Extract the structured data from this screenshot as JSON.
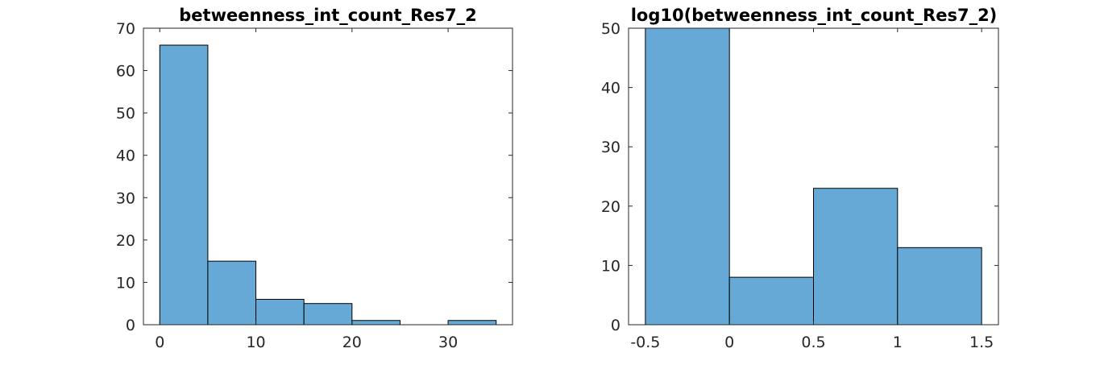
{
  "chart_data": [
    {
      "type": "bar",
      "title": "betweenness_int_count_Res7_2",
      "xlabel": "",
      "ylabel": "",
      "bin_edges": [
        0,
        5,
        10,
        15,
        20,
        25,
        30,
        35
      ],
      "values": [
        66,
        15,
        6,
        5,
        1,
        0,
        1
      ],
      "xlim": [
        -1.7,
        36.7
      ],
      "ylim": [
        0,
        70
      ],
      "xticks": [
        "0",
        "10",
        "20",
        "30"
      ],
      "yticks": [
        "0",
        "10",
        "20",
        "30",
        "40",
        "50",
        "60",
        "70"
      ],
      "bar_color": "#67a9d6",
      "grid": false
    },
    {
      "type": "bar",
      "title": "log10(betweenness_int_count_Res7_2)",
      "xlabel": "",
      "ylabel": "",
      "bin_edges": [
        -0.5,
        0,
        0.5,
        1,
        1.5
      ],
      "values": [
        50,
        8,
        23,
        13
      ],
      "xlim": [
        -0.6,
        1.6
      ],
      "ylim": [
        0,
        50
      ],
      "xticks": [
        "-0.5",
        "0",
        "0.5",
        "1",
        "1.5"
      ],
      "yticks": [
        "0",
        "10",
        "20",
        "30",
        "40",
        "50"
      ],
      "bar_color": "#67a9d6",
      "grid": false
    }
  ]
}
